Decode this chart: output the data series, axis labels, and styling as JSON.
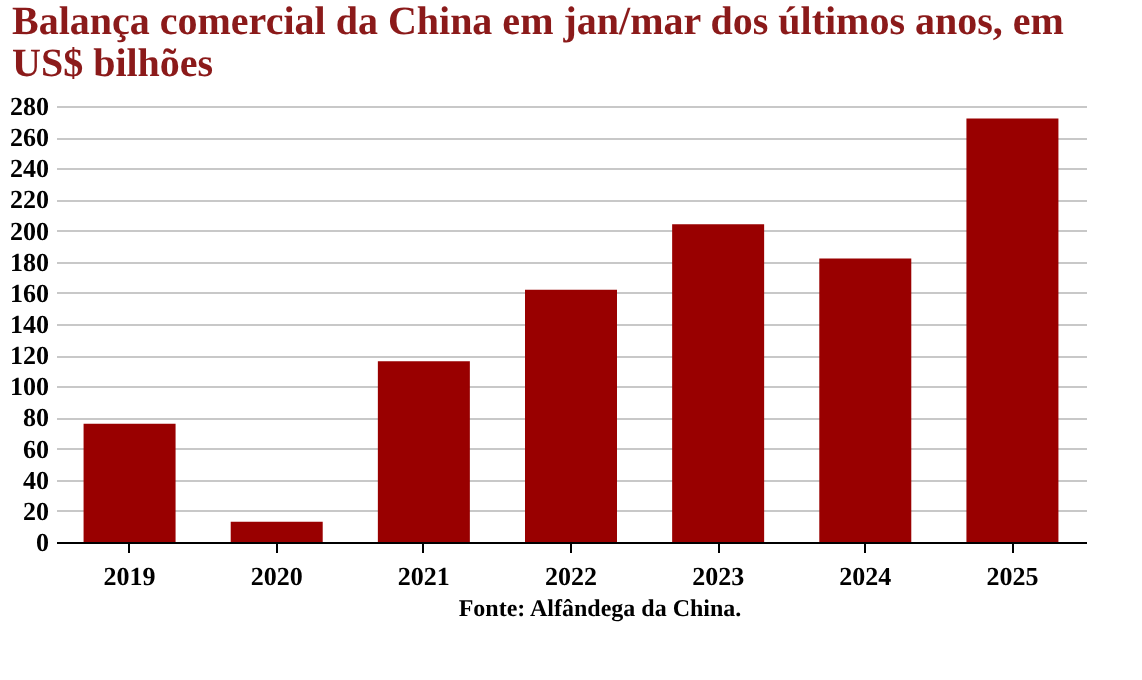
{
  "chart_data": {
    "type": "bar",
    "title": "Balança comercial da China em jan/mar dos últimos anos, em US$ bilhões",
    "categories": [
      "2019",
      "2020",
      "2021",
      "2022",
      "2023",
      "2024",
      "2025"
    ],
    "series": [
      {
        "color": "#990000",
        "values": [
          76,
          13,
          116,
          162,
          204,
          182,
          272
        ]
      }
    ],
    "ylim": [
      0,
      280
    ],
    "yticks": [
      0,
      20,
      40,
      60,
      80,
      100,
      120,
      140,
      160,
      180,
      200,
      220,
      240,
      260,
      280
    ],
    "grid": "y",
    "legend": false,
    "annotations": [
      "Fonte: Alfândega da China."
    ]
  }
}
